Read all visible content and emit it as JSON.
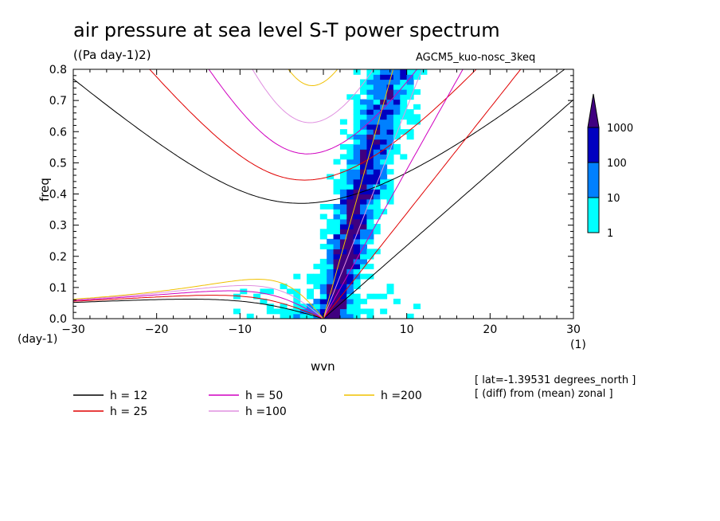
{
  "chart_data": {
    "type": "heatmap",
    "title": "air pressure at sea level S-T power spectrum",
    "units": "((Pa day-1)2)",
    "model": "AGCM5_kuo-nosc_3keq",
    "xlabel": "wvn",
    "ylabel": "freq",
    "x_unit": "(1)",
    "y_unit": "(day-1)",
    "xlim": [
      -30,
      30
    ],
    "ylim": [
      0.0,
      0.8
    ],
    "x_ticks": [
      "-30",
      "-20",
      "-10",
      "0",
      "10",
      "20",
      "30"
    ],
    "y_ticks": [
      "0.0",
      "0.1",
      "0.2",
      "0.3",
      "0.4",
      "0.5",
      "0.6",
      "0.7",
      "0.8"
    ],
    "colorbar": {
      "levels": [
        "1",
        "10",
        "100",
        "1000"
      ],
      "colors": [
        "#00ffff",
        "#0080ff",
        "#0000c0",
        "#400080"
      ]
    },
    "info": [
      "[ lat=-1.39531 degrees_north ]",
      "[ (diff) from (mean) zonal ]"
    ],
    "legend": [
      {
        "label": "h = 12",
        "h": 12,
        "color": "#000000"
      },
      {
        "label": "h = 25",
        "h": 25,
        "color": "#e00000"
      },
      {
        "label": "h = 50",
        "h": 50,
        "color": "#d000c0"
      },
      {
        "label": "h =100",
        "h": 100,
        "color": "#e090e0"
      },
      {
        "label": "h =200",
        "h": 200,
        "color": "#f0c000"
      }
    ],
    "dispersion_curves_equivalent_depths_m": [
      12,
      25,
      50,
      100,
      200
    ]
  }
}
